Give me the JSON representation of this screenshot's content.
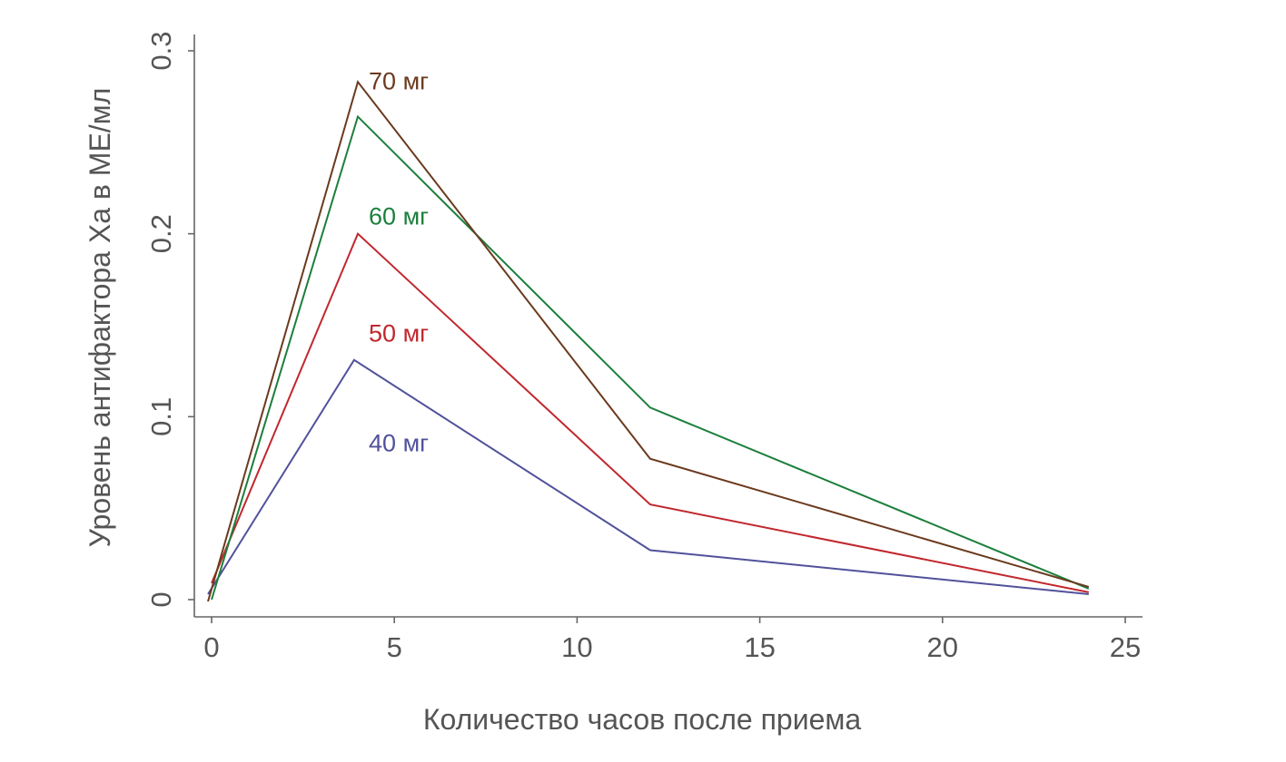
{
  "chart_data": {
    "type": "line",
    "title": "",
    "xlabel": "Количество часов после приема",
    "ylabel": "Уровень антифактора Ха в МЕ/мл",
    "xlim": [
      -0.5,
      25.5
    ],
    "ylim": [
      -0.01,
      0.31
    ],
    "x_ticks": [
      "0",
      "5",
      "10",
      "15",
      "20",
      "25"
    ],
    "y_ticks": [
      "0",
      "0.1",
      "0.2",
      "0.3"
    ],
    "grid": false,
    "legend": "inline labels",
    "series": [
      {
        "name": "40 мг",
        "color": "#51519b",
        "points": [
          [
            -0.1,
            0.003
          ],
          [
            3.9,
            0.131
          ],
          [
            12,
            0.027
          ],
          [
            24,
            0.003
          ]
        ],
        "label_at": [
          4.3,
          0.086
        ]
      },
      {
        "name": "50 мг",
        "color": "#c1272d",
        "points": [
          [
            0,
            0.009
          ],
          [
            4,
            0.2
          ],
          [
            12,
            0.052
          ],
          [
            24,
            0.004
          ]
        ],
        "label_at": [
          4.3,
          0.146
        ]
      },
      {
        "name": "60 мг",
        "color": "#1c7f3c",
        "points": [
          [
            0,
            0.0
          ],
          [
            4,
            0.264
          ],
          [
            12,
            0.105
          ],
          [
            24,
            0.006
          ]
        ],
        "label_at": [
          4.3,
          0.21
        ]
      },
      {
        "name": "70 мг",
        "color": "#6b3a1e",
        "points": [
          [
            -0.1,
            -0.001
          ],
          [
            4,
            0.283
          ],
          [
            12,
            0.077
          ],
          [
            24,
            0.007
          ]
        ],
        "label_at": [
          4.3,
          0.284
        ]
      }
    ]
  }
}
